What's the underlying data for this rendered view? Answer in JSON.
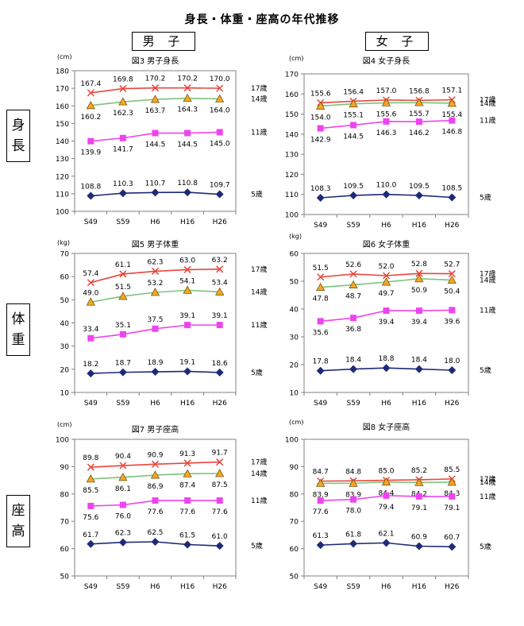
{
  "page": {
    "title": "身長・体重・座高の年代推移",
    "gender_male": "男 子",
    "gender_female": "女 子",
    "row_height": "身長",
    "row_weight": "体重",
    "row_sitting": "座高"
  },
  "colors": {
    "age17": "#e8463c",
    "age14": "#7cc47c",
    "age11": "#ee44ee",
    "age5": "#1e2a78",
    "age14_marker": "#f5a623"
  },
  "chart_data": [
    {
      "id": "fig3",
      "type": "line",
      "title": "図3 男子身長",
      "unit": "(cm)",
      "categories": [
        "S49",
        "S59",
        "H6",
        "H16",
        "H26"
      ],
      "ylim": [
        100,
        180
      ],
      "yticks": [
        100,
        110,
        120,
        130,
        140,
        150,
        160,
        170,
        180
      ],
      "series": [
        {
          "name": "17歳",
          "values": [
            167.4,
            169.8,
            170.2,
            170.2,
            170.0
          ]
        },
        {
          "name": "14歳",
          "values": [
            160.2,
            162.3,
            163.7,
            164.3,
            164.0
          ]
        },
        {
          "name": "11歳",
          "values": [
            139.9,
            141.7,
            144.5,
            144.5,
            145.0
          ]
        },
        {
          "name": "5歳",
          "values": [
            108.8,
            110.3,
            110.7,
            110.8,
            109.7
          ]
        }
      ],
      "labels": [
        [
          "167.4",
          "169.8",
          "170.2",
          "170.2",
          "170.0"
        ],
        [
          "160.2",
          "162.3",
          "163.7",
          "164.3",
          "164.0"
        ],
        [
          "139.9",
          "141.7",
          "144.5",
          "144.5",
          "145.0"
        ],
        [
          "108.8",
          "110.3",
          "110.7",
          "110.8",
          "109.7"
        ]
      ]
    },
    {
      "id": "fig4",
      "type": "line",
      "title": "図4 女子身長",
      "unit": "(cm)",
      "categories": [
        "S49",
        "S59",
        "H6",
        "H16",
        "H26"
      ],
      "ylim": [
        100,
        170
      ],
      "yticks": [
        100,
        110,
        120,
        130,
        140,
        150,
        160,
        170
      ],
      "series": [
        {
          "name": "17歳",
          "values": [
            155.6,
            156.4,
            157.0,
            156.8,
            157.1
          ]
        },
        {
          "name": "14歳",
          "values": [
            154.0,
            155.1,
            155.6,
            155.7,
            155.4
          ]
        },
        {
          "name": "11歳",
          "values": [
            142.9,
            144.5,
            146.3,
            146.2,
            146.8
          ]
        },
        {
          "name": "5歳",
          "values": [
            108.3,
            109.5,
            110.0,
            109.5,
            108.5
          ]
        }
      ],
      "labels": [
        [
          "155.6",
          "156.4",
          "157.0",
          "156.8",
          "157.1"
        ],
        [
          "154.0",
          "155.1",
          "155.6",
          "155.7",
          "155.4"
        ],
        [
          "142.9",
          "144.5",
          "146.3",
          "146.2",
          "146.8"
        ],
        [
          "108.3",
          "109.5",
          "110.0",
          "109.5",
          "108.5"
        ]
      ]
    },
    {
      "id": "fig5",
      "type": "line",
      "title": "図5 男子体重",
      "unit": "(kg)",
      "categories": [
        "S49",
        "S59",
        "H6",
        "H16",
        "H26"
      ],
      "ylim": [
        10,
        70
      ],
      "yticks": [
        10,
        20,
        30,
        40,
        50,
        60,
        70
      ],
      "series": [
        {
          "name": "17歳",
          "values": [
            57.4,
            61.1,
            62.3,
            63.0,
            63.2
          ]
        },
        {
          "name": "14歳",
          "values": [
            49.0,
            51.5,
            53.2,
            54.1,
            53.4
          ]
        },
        {
          "name": "11歳",
          "values": [
            33.4,
            35.1,
            37.5,
            39.1,
            39.1
          ]
        },
        {
          "name": "5歳",
          "values": [
            18.2,
            18.7,
            18.9,
            19.1,
            18.6
          ]
        }
      ],
      "labels": [
        [
          "57.4",
          "61.1",
          "62.3",
          "63.0",
          "63.2"
        ],
        [
          "49.0",
          "51.5",
          "53.2",
          "54.1",
          "53.4"
        ],
        [
          "33.4",
          "35.1",
          "37.5",
          "39.1",
          "39.1"
        ],
        [
          "18.2",
          "18.7",
          "18.9",
          "19.1",
          "18.6"
        ]
      ]
    },
    {
      "id": "fig6",
      "type": "line",
      "title": "図6 女子体重",
      "unit": "(kg)",
      "categories": [
        "S49",
        "S59",
        "H6",
        "H16",
        "H26"
      ],
      "ylim": [
        10,
        60
      ],
      "yticks": [
        10,
        20,
        30,
        40,
        50,
        60
      ],
      "series": [
        {
          "name": "17歳",
          "values": [
            51.5,
            52.6,
            52.0,
            52.8,
            52.7
          ]
        },
        {
          "name": "14歳",
          "values": [
            47.8,
            48.7,
            49.7,
            50.9,
            50.4
          ]
        },
        {
          "name": "11歳",
          "values": [
            35.6,
            36.8,
            39.4,
            39.4,
            39.6
          ]
        },
        {
          "name": "5歳",
          "values": [
            17.8,
            18.4,
            18.8,
            18.4,
            18.0
          ]
        }
      ],
      "labels": [
        [
          "51.5",
          "52.6",
          "52.0",
          "52.8",
          "52.7"
        ],
        [
          "47.8",
          "48.7",
          "49.7",
          "50.9",
          "50.4"
        ],
        [
          "35.6",
          "36.8",
          "39.4",
          "39.4",
          "39.6"
        ],
        [
          "17.8",
          "18.4",
          "18.8",
          "18.4",
          "18.0"
        ]
      ]
    },
    {
      "id": "fig7",
      "type": "line",
      "title": "図7 男子座高",
      "unit": "(cm)",
      "categories": [
        "S49",
        "S59",
        "H6",
        "H16",
        "H26"
      ],
      "ylim": [
        50,
        100
      ],
      "yticks": [
        50,
        60,
        70,
        80,
        90,
        100
      ],
      "series": [
        {
          "name": "17歳",
          "values": [
            89.8,
            90.4,
            90.9,
            91.3,
            91.7
          ]
        },
        {
          "name": "14歳",
          "values": [
            85.5,
            86.1,
            86.9,
            87.4,
            87.5
          ]
        },
        {
          "name": "11歳",
          "values": [
            75.6,
            76.0,
            77.6,
            77.6,
            77.6
          ]
        },
        {
          "name": "5歳",
          "values": [
            61.7,
            62.3,
            62.5,
            61.5,
            61.0
          ]
        }
      ],
      "labels": [
        [
          "89.8",
          "90.4",
          "90.9",
          "91.3",
          "91.7"
        ],
        [
          "85.5",
          "86.1",
          "86.9",
          "87.4",
          "87.5"
        ],
        [
          "75.6",
          "76.0",
          "77.6",
          "77.6",
          "77.6"
        ],
        [
          "61.7",
          "62.3",
          "62.5",
          "61.5",
          "61.0"
        ]
      ]
    },
    {
      "id": "fig8",
      "type": "line",
      "title": "図8 女子座高",
      "unit": "(cm)",
      "categories": [
        "S49",
        "S59",
        "H6",
        "H16",
        "H26"
      ],
      "ylim": [
        50,
        100
      ],
      "yticks": [
        50,
        60,
        70,
        80,
        90,
        100
      ],
      "series": [
        {
          "name": "17歳",
          "values": [
            84.7,
            84.8,
            85.0,
            85.2,
            85.5
          ]
        },
        {
          "name": "14歳",
          "values": [
            83.9,
            83.9,
            84.4,
            84.2,
            84.3
          ]
        },
        {
          "name": "11歳",
          "values": [
            77.6,
            78.0,
            79.4,
            79.1,
            79.1
          ]
        },
        {
          "name": "5歳",
          "values": [
            61.3,
            61.8,
            62.1,
            60.9,
            60.7
          ]
        }
      ],
      "labels": [
        [
          "84.7",
          "84.8",
          "85.0",
          "85.2",
          "85.5"
        ],
        [
          "83.9",
          "83.9",
          "84.4",
          "84.2",
          "84.3"
        ],
        [
          "77.6",
          "78.0",
          "79.4",
          "79.1",
          "79.1"
        ],
        [
          "61.3",
          "61.8",
          "62.1",
          "60.9",
          "60.7"
        ]
      ]
    }
  ]
}
